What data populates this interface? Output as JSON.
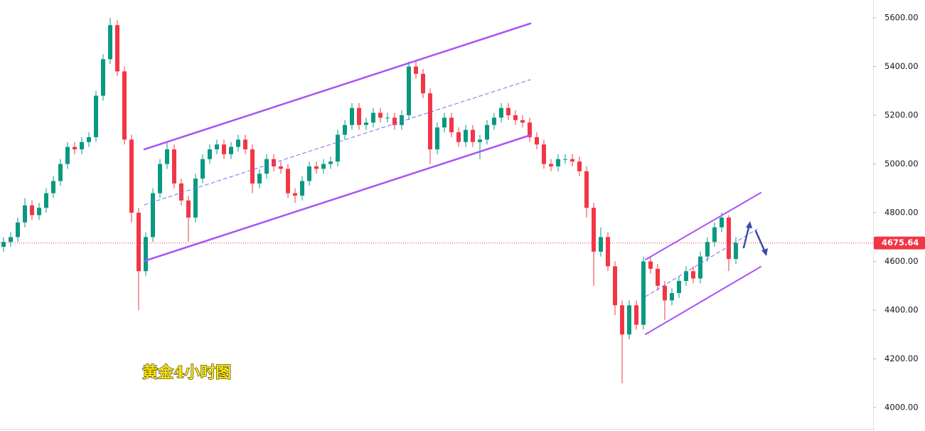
{
  "chart_data": {
    "type": "candlestick",
    "annotation": "黄金4小时图",
    "up_color": "#089981",
    "down_color": "#f23645",
    "ylim": [
      3904,
      5673
    ],
    "yticks": [
      {
        "value": 4000,
        "label": "4000.00"
      },
      {
        "value": 4200,
        "label": "4200.00"
      },
      {
        "value": 4400,
        "label": "4400.00"
      },
      {
        "value": 4600,
        "label": "4600.00"
      },
      {
        "value": 4800,
        "label": "4800.00"
      },
      {
        "value": 5000,
        "label": "5000.00"
      },
      {
        "value": 5200,
        "label": "5200.00"
      },
      {
        "value": 5400,
        "label": "5400.00"
      },
      {
        "value": 5600,
        "label": "5600.00"
      }
    ],
    "last_price": 4675.64,
    "open": [
      4660,
      4680,
      4700,
      4760,
      4830,
      4790,
      4820,
      4880,
      4930,
      5000,
      5070,
      5060,
      5090,
      5110,
      5280,
      5430,
      5570,
      5380,
      5100,
      4800,
      4560,
      4700,
      4880,
      5000,
      5060,
      4920,
      4850,
      4780,
      4940,
      5020,
      5060,
      5080,
      5040,
      5070,
      5100,
      5060,
      4920,
      4960,
      5020,
      4990,
      4980,
      4880,
      4870,
      4930,
      4990,
      4980,
      5000,
      5010,
      5120,
      5160,
      5230,
      5160,
      5170,
      5210,
      5190,
      5190,
      5160,
      5200,
      5400,
      5370,
      5290,
      5060,
      5150,
      5190,
      5130,
      5090,
      5140,
      5090,
      5100,
      5160,
      5190,
      5230,
      5200,
      5180,
      5170,
      5110,
      5080,
      5000,
      4990,
      5020,
      5020,
      5010,
      4970,
      4820,
      4640,
      4700,
      4580,
      4420,
      4300,
      4420,
      4340,
      4600,
      4570,
      4500,
      4440,
      4470,
      4520,
      4560,
      4530,
      4620,
      4680,
      4740,
      4780,
      4610
    ],
    "high": [
      4700,
      4720,
      4780,
      4860,
      4850,
      4840,
      4900,
      4950,
      5020,
      5090,
      5090,
      5110,
      5130,
      5300,
      5450,
      5600,
      5590,
      5400,
      5120,
      4820,
      4720,
      4900,
      5020,
      5090,
      5080,
      4940,
      4870,
      4960,
      5040,
      5080,
      5100,
      5100,
      5090,
      5120,
      5120,
      5080,
      4980,
      5040,
      5040,
      5010,
      5000,
      4900,
      4950,
      5010,
      5010,
      5020,
      5030,
      5140,
      5180,
      5250,
      5250,
      5190,
      5230,
      5230,
      5210,
      5210,
      5220,
      5420,
      5420,
      5390,
      5310,
      5170,
      5210,
      5210,
      5150,
      5160,
      5160,
      5120,
      5180,
      5210,
      5250,
      5250,
      5220,
      5200,
      5190,
      5130,
      5100,
      5020,
      5040,
      5040,
      5040,
      5030,
      4990,
      4840,
      4740,
      4720,
      4600,
      4440,
      4440,
      4440,
      4620,
      4620,
      4590,
      4520,
      4490,
      4540,
      4580,
      4580,
      4640,
      4700,
      4760,
      4800,
      4790,
      4700
    ],
    "low": [
      4640,
      4660,
      4680,
      4740,
      4770,
      4770,
      4800,
      4860,
      4910,
      4980,
      5040,
      5040,
      5070,
      5090,
      5260,
      5410,
      5360,
      5080,
      4760,
      4400,
      4540,
      4680,
      4860,
      4980,
      4900,
      4830,
      4680,
      4760,
      4920,
      5000,
      5040,
      5020,
      5020,
      5050,
      5040,
      4880,
      4900,
      4940,
      4970,
      4960,
      4860,
      4840,
      4850,
      4910,
      4960,
      4960,
      4980,
      4990,
      5100,
      5140,
      5140,
      5140,
      5150,
      5170,
      5170,
      5140,
      5140,
      5180,
      5350,
      5270,
      5000,
      5040,
      5130,
      5110,
      5070,
      5070,
      5070,
      5020,
      5080,
      5140,
      5170,
      5180,
      5160,
      5150,
      5090,
      5060,
      4980,
      4970,
      4970,
      5000,
      4990,
      4950,
      4780,
      4500,
      4620,
      4560,
      4380,
      4100,
      4280,
      4320,
      4320,
      4550,
      4480,
      4360,
      4420,
      4450,
      4500,
      4510,
      4510,
      4600,
      4660,
      4720,
      4560,
      4590
    ],
    "close": [
      4680,
      4700,
      4760,
      4830,
      4790,
      4820,
      4880,
      4930,
      5000,
      5070,
      5060,
      5090,
      5110,
      5280,
      5430,
      5570,
      5380,
      5100,
      4800,
      4560,
      4700,
      4880,
      5000,
      5060,
      4920,
      4850,
      4780,
      4940,
      5020,
      5060,
      5080,
      5040,
      5070,
      5100,
      5060,
      4920,
      4960,
      5020,
      4990,
      4980,
      4880,
      4870,
      4930,
      4990,
      4980,
      5000,
      5010,
      5120,
      5160,
      5230,
      5160,
      5170,
      5210,
      5190,
      5190,
      5160,
      5200,
      5400,
      5370,
      5290,
      5060,
      5150,
      5190,
      5130,
      5090,
      5140,
      5090,
      5100,
      5160,
      5190,
      5230,
      5200,
      5180,
      5170,
      5110,
      5080,
      5000,
      4990,
      5020,
      5020,
      5010,
      4970,
      4820,
      4640,
      4700,
      4580,
      4420,
      4300,
      4420,
      4340,
      4600,
      4570,
      4500,
      4440,
      4470,
      4520,
      4560,
      4530,
      4620,
      4680,
      4740,
      4780,
      4610,
      4675.64
    ]
  }
}
